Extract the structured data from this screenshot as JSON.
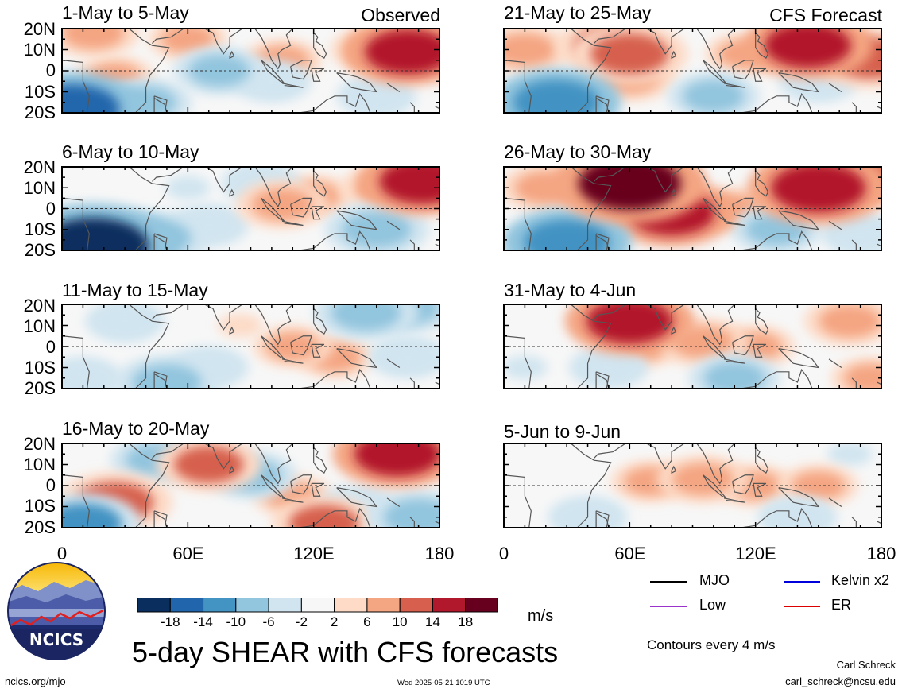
{
  "panels": [
    {
      "title": "1-May to 5-May",
      "tag": "Observed"
    },
    {
      "title": "6-May to 10-May",
      "tag": ""
    },
    {
      "title": "11-May to 15-May",
      "tag": ""
    },
    {
      "title": "16-May to 20-May",
      "tag": ""
    },
    {
      "title": "21-May to 25-May",
      "tag": "CFS Forecast"
    },
    {
      "title": "26-May to 30-May",
      "tag": ""
    },
    {
      "title": "31-May to 4-Jun",
      "tag": ""
    },
    {
      "title": "5-Jun to 9-Jun",
      "tag": ""
    }
  ],
  "lat_labels": [
    "20N",
    "10N",
    "0",
    "10S",
    "20S"
  ],
  "lon_labels": [
    "0",
    "60E",
    "120E",
    "180"
  ],
  "colorbar": {
    "ticks": [
      "-18",
      "-14",
      "-10",
      "-6",
      "-2",
      "2",
      "6",
      "10",
      "14",
      "18"
    ],
    "colors": [
      "#0a2f5e",
      "#2166ac",
      "#4393c3",
      "#92c5de",
      "#d1e5f0",
      "#f7f7f7",
      "#fddbc7",
      "#f4a582",
      "#d6604d",
      "#b2182b",
      "#67001f"
    ],
    "unit": "m/s"
  },
  "legend": [
    {
      "label": "MJO",
      "color": "#000000"
    },
    {
      "label": "Kelvin x2",
      "color": "#0000dd"
    },
    {
      "label": "Low",
      "color": "#9933cc"
    },
    {
      "label": "ER",
      "color": "#dd0000"
    }
  ],
  "contours_note": "Contours every 4 m/s",
  "main_title": "5-day SHEAR with CFS forecasts",
  "logo_text": "NCICS",
  "footer": {
    "left": "ncics.org/mjo",
    "center": "Wed 2025-05-21 1019 UTC",
    "author": "Carl Schreck",
    "email": "carl_schreck@ncsu.edu"
  },
  "anomaly_blobs": [
    [
      {
        "lon": 165,
        "lat": 9,
        "v": 14
      },
      {
        "lon": 150,
        "lat": 10,
        "v": 8
      },
      {
        "lon": 105,
        "lat": 5,
        "v": 6
      },
      {
        "lon": 60,
        "lat": 15,
        "v": 6
      },
      {
        "lon": 75,
        "lat": 0,
        "v": -8
      },
      {
        "lon": 100,
        "lat": -5,
        "v": -6
      },
      {
        "lon": 5,
        "lat": -18,
        "v": -16
      },
      {
        "lon": 40,
        "lat": -15,
        "v": -8
      },
      {
        "lon": 150,
        "lat": -12,
        "v": -6
      },
      {
        "lon": 25,
        "lat": -3,
        "v": 6
      },
      {
        "lon": 15,
        "lat": 18,
        "v": 8
      }
    ],
    [
      {
        "lon": 172,
        "lat": 13,
        "v": 14
      },
      {
        "lon": 155,
        "lat": 10,
        "v": 8
      },
      {
        "lon": 105,
        "lat": 2,
        "v": 8
      },
      {
        "lon": 120,
        "lat": 6,
        "v": 6
      },
      {
        "lon": 15,
        "lat": -18,
        "v": -20
      },
      {
        "lon": 45,
        "lat": -14,
        "v": -10
      },
      {
        "lon": 150,
        "lat": -10,
        "v": -10
      },
      {
        "lon": 70,
        "lat": -8,
        "v": -6
      },
      {
        "lon": 95,
        "lat": 12,
        "v": -6
      },
      {
        "lon": 60,
        "lat": 10,
        "v": -4
      }
    ],
    [
      {
        "lon": 145,
        "lat": 16,
        "v": -10
      },
      {
        "lon": 165,
        "lat": 18,
        "v": -8
      },
      {
        "lon": 130,
        "lat": -5,
        "v": 6
      },
      {
        "lon": 110,
        "lat": 0,
        "v": 6
      },
      {
        "lon": 85,
        "lat": 10,
        "v": 4
      },
      {
        "lon": 50,
        "lat": -17,
        "v": -10
      },
      {
        "lon": 10,
        "lat": -15,
        "v": -6
      },
      {
        "lon": 70,
        "lat": -10,
        "v": -6
      },
      {
        "lon": 165,
        "lat": -5,
        "v": -6
      },
      {
        "lon": 30,
        "lat": 12,
        "v": -6
      }
    ],
    [
      {
        "lon": 160,
        "lat": 15,
        "v": 14
      },
      {
        "lon": 70,
        "lat": 10,
        "v": 10
      },
      {
        "lon": 25,
        "lat": -8,
        "v": 12
      },
      {
        "lon": 110,
        "lat": -5,
        "v": 6
      },
      {
        "lon": 125,
        "lat": -18,
        "v": 10
      },
      {
        "lon": 10,
        "lat": -18,
        "v": -12
      },
      {
        "lon": 170,
        "lat": -15,
        "v": -10
      },
      {
        "lon": 90,
        "lat": 5,
        "v": -8
      },
      {
        "lon": 45,
        "lat": 12,
        "v": -8
      },
      {
        "lon": 140,
        "lat": -10,
        "v": -6
      }
    ],
    [
      {
        "lon": 60,
        "lat": 8,
        "v": 12
      },
      {
        "lon": 50,
        "lat": 12,
        "v": 10
      },
      {
        "lon": 145,
        "lat": 12,
        "v": 14
      },
      {
        "lon": 175,
        "lat": 6,
        "v": 12
      },
      {
        "lon": 60,
        "lat": -3,
        "v": 8
      },
      {
        "lon": 10,
        "lat": 10,
        "v": 8
      },
      {
        "lon": 25,
        "lat": -15,
        "v": -14
      },
      {
        "lon": 100,
        "lat": -12,
        "v": -8
      },
      {
        "lon": 150,
        "lat": -5,
        "v": -6
      },
      {
        "lon": 115,
        "lat": 8,
        "v": 6
      }
    ],
    [
      {
        "lon": 60,
        "lat": 12,
        "v": 18
      },
      {
        "lon": 80,
        "lat": -2,
        "v": 14
      },
      {
        "lon": 150,
        "lat": 10,
        "v": 16
      },
      {
        "lon": 20,
        "lat": 10,
        "v": 8
      },
      {
        "lon": 30,
        "lat": -16,
        "v": -14
      },
      {
        "lon": 130,
        "lat": -10,
        "v": -8
      },
      {
        "lon": 170,
        "lat": -12,
        "v": -6
      },
      {
        "lon": 110,
        "lat": 0,
        "v": 6
      },
      {
        "lon": 175,
        "lat": 15,
        "v": 10
      }
    ],
    [
      {
        "lon": 60,
        "lat": 12,
        "v": 14
      },
      {
        "lon": 95,
        "lat": 2,
        "v": 8
      },
      {
        "lon": 165,
        "lat": 12,
        "v": 8
      },
      {
        "lon": 120,
        "lat": 0,
        "v": 6
      },
      {
        "lon": 65,
        "lat": 0,
        "v": 6
      },
      {
        "lon": 110,
        "lat": -15,
        "v": -8
      },
      {
        "lon": 50,
        "lat": -10,
        "v": -6
      },
      {
        "lon": 175,
        "lat": -15,
        "v": 6
      },
      {
        "lon": 10,
        "lat": -10,
        "v": -4
      }
    ],
    [
      {
        "lon": 95,
        "lat": 3,
        "v": 8
      },
      {
        "lon": 70,
        "lat": 2,
        "v": 6
      },
      {
        "lon": 120,
        "lat": 0,
        "v": 6
      },
      {
        "lon": 150,
        "lat": 0,
        "v": 6
      },
      {
        "lon": 40,
        "lat": -15,
        "v": -6
      },
      {
        "lon": 140,
        "lat": -15,
        "v": -6
      },
      {
        "lon": 165,
        "lat": 15,
        "v": -4
      }
    ]
  ]
}
